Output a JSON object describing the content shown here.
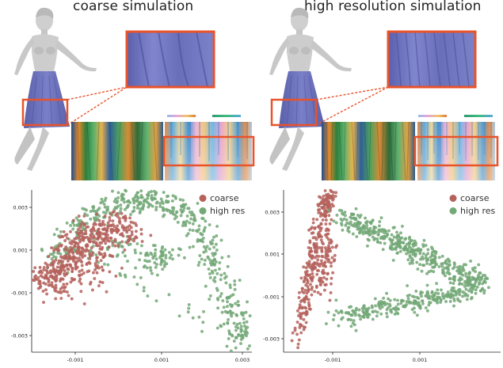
{
  "figure": {
    "titles": {
      "left": "coarse simulation",
      "right": "high resolution simulation"
    }
  },
  "colors": {
    "coarse": "#b5625c",
    "high_res": "#73a877",
    "highlight_box": "#e8532a",
    "skirt": "#6a6fb8",
    "mannequin": "#c9c9c9"
  },
  "chart_data": [
    {
      "type": "scatter",
      "title": "",
      "xlabel": "",
      "ylabel": "",
      "xlim": [
        -0.0028,
        0.0032
      ],
      "ylim": [
        -0.0038,
        0.0038
      ],
      "x_ticks": [
        "-0.001",
        "0.001",
        "0.003"
      ],
      "y_ticks": [
        "0.003",
        "0.001",
        "-0.001",
        "-0.003"
      ],
      "grid": false,
      "legend_position": "top-right",
      "series": [
        {
          "name": "coarse",
          "color": "#b5625c",
          "shape": "dense cluster on left arc",
          "points": [
            [
              -0.0025,
              -0.0004
            ],
            [
              -0.0024,
              0.0
            ],
            [
              -0.0023,
              -0.0008
            ],
            [
              -0.0022,
              0.0006
            ],
            [
              -0.0021,
              -0.0012
            ],
            [
              -0.002,
              0.001
            ],
            [
              -0.0019,
              -0.0003
            ],
            [
              -0.0018,
              0.0014
            ],
            [
              -0.0017,
              -0.0006
            ],
            [
              -0.0016,
              0.0018
            ],
            [
              -0.0015,
              0.0004
            ],
            [
              -0.0014,
              0.0021
            ],
            [
              -0.0013,
              -0.0009
            ],
            [
              -0.0012,
              0.0024
            ],
            [
              -0.0011,
              0.0008
            ],
            [
              -0.001,
              0.0026
            ],
            [
              -0.0009,
              -0.0002
            ],
            [
              -0.0008,
              0.0027
            ],
            [
              -0.0006,
              0.0012
            ],
            [
              -0.0004,
              0.0026
            ],
            [
              -0.0002,
              0.0016
            ],
            [
              0.0,
              0.0019
            ]
          ]
        },
        {
          "name": "high res",
          "color": "#73a877",
          "shape": "broad arc to lower right",
          "points": [
            [
              -0.0022,
              0.0003
            ],
            [
              -0.0018,
              0.0015
            ],
            [
              -0.0014,
              0.0023
            ],
            [
              -0.001,
              0.0028
            ],
            [
              -0.0006,
              0.0031
            ],
            [
              -0.0002,
              0.0033
            ],
            [
              0.0002,
              0.0034
            ],
            [
              0.0006,
              0.0033
            ],
            [
              0.001,
              0.0031
            ],
            [
              0.0014,
              0.0028
            ],
            [
              0.0017,
              0.0022
            ],
            [
              0.0019,
              0.0014
            ],
            [
              0.0021,
              0.0006
            ],
            [
              0.0023,
              -0.0004
            ],
            [
              0.0025,
              -0.0013
            ],
            [
              0.0027,
              -0.0021
            ],
            [
              0.0029,
              -0.0029
            ],
            [
              0.003,
              -0.0034
            ],
            [
              -0.0012,
              0.0008
            ],
            [
              -0.0004,
              0.0014
            ],
            [
              0.0004,
              0.0006
            ],
            [
              0.001,
              0.0012
            ],
            [
              0.0006,
              -0.0002
            ]
          ]
        }
      ]
    },
    {
      "type": "scatter",
      "title": "",
      "xlabel": "",
      "ylabel": "",
      "xlim": [
        -0.0024,
        0.0036
      ],
      "ylim": [
        -0.0038,
        0.0038
      ],
      "x_ticks": [
        "-0.001",
        "0.001"
      ],
      "y_ticks": [
        "0.003",
        "0.001",
        "-0.001",
        "-0.003"
      ],
      "grid": false,
      "legend_position": "top-right",
      "series": [
        {
          "name": "coarse",
          "color": "#b5625c",
          "shape": "narrow vertical band on left",
          "points": [
            [
              -0.002,
              -0.0031
            ],
            [
              -0.0019,
              -0.0022
            ],
            [
              -0.0018,
              -0.0013
            ],
            [
              -0.0017,
              -0.0004
            ],
            [
              -0.0016,
              0.0005
            ],
            [
              -0.0015,
              0.0013
            ],
            [
              -0.0014,
              0.0021
            ],
            [
              -0.0013,
              0.0028
            ],
            [
              -0.0012,
              0.0033
            ],
            [
              -0.0011,
              0.0036
            ],
            [
              -0.0013,
              -0.0008
            ],
            [
              -0.0012,
              0.0004
            ],
            [
              -0.0011,
              0.0016
            ]
          ]
        },
        {
          "name": "high res",
          "color": "#73a877",
          "shape": "wedge opening to the right",
          "points": [
            [
              -0.0008,
              0.0025
            ],
            [
              -0.0004,
              0.0022
            ],
            [
              0.0,
              0.0019
            ],
            [
              0.0004,
              0.0016
            ],
            [
              0.0008,
              0.0012
            ],
            [
              0.0012,
              0.0009
            ],
            [
              0.0016,
              0.0006
            ],
            [
              0.002,
              0.0003
            ],
            [
              0.0024,
              0.0
            ],
            [
              0.0028,
              -0.0003
            ],
            [
              0.003,
              -0.0006
            ],
            [
              0.0026,
              -0.001
            ],
            [
              0.002,
              -0.0012
            ],
            [
              0.0014,
              -0.0014
            ],
            [
              0.0008,
              -0.0016
            ],
            [
              0.0002,
              -0.0018
            ],
            [
              -0.0004,
              -0.002
            ],
            [
              -0.0008,
              -0.0023
            ]
          ]
        }
      ]
    }
  ]
}
